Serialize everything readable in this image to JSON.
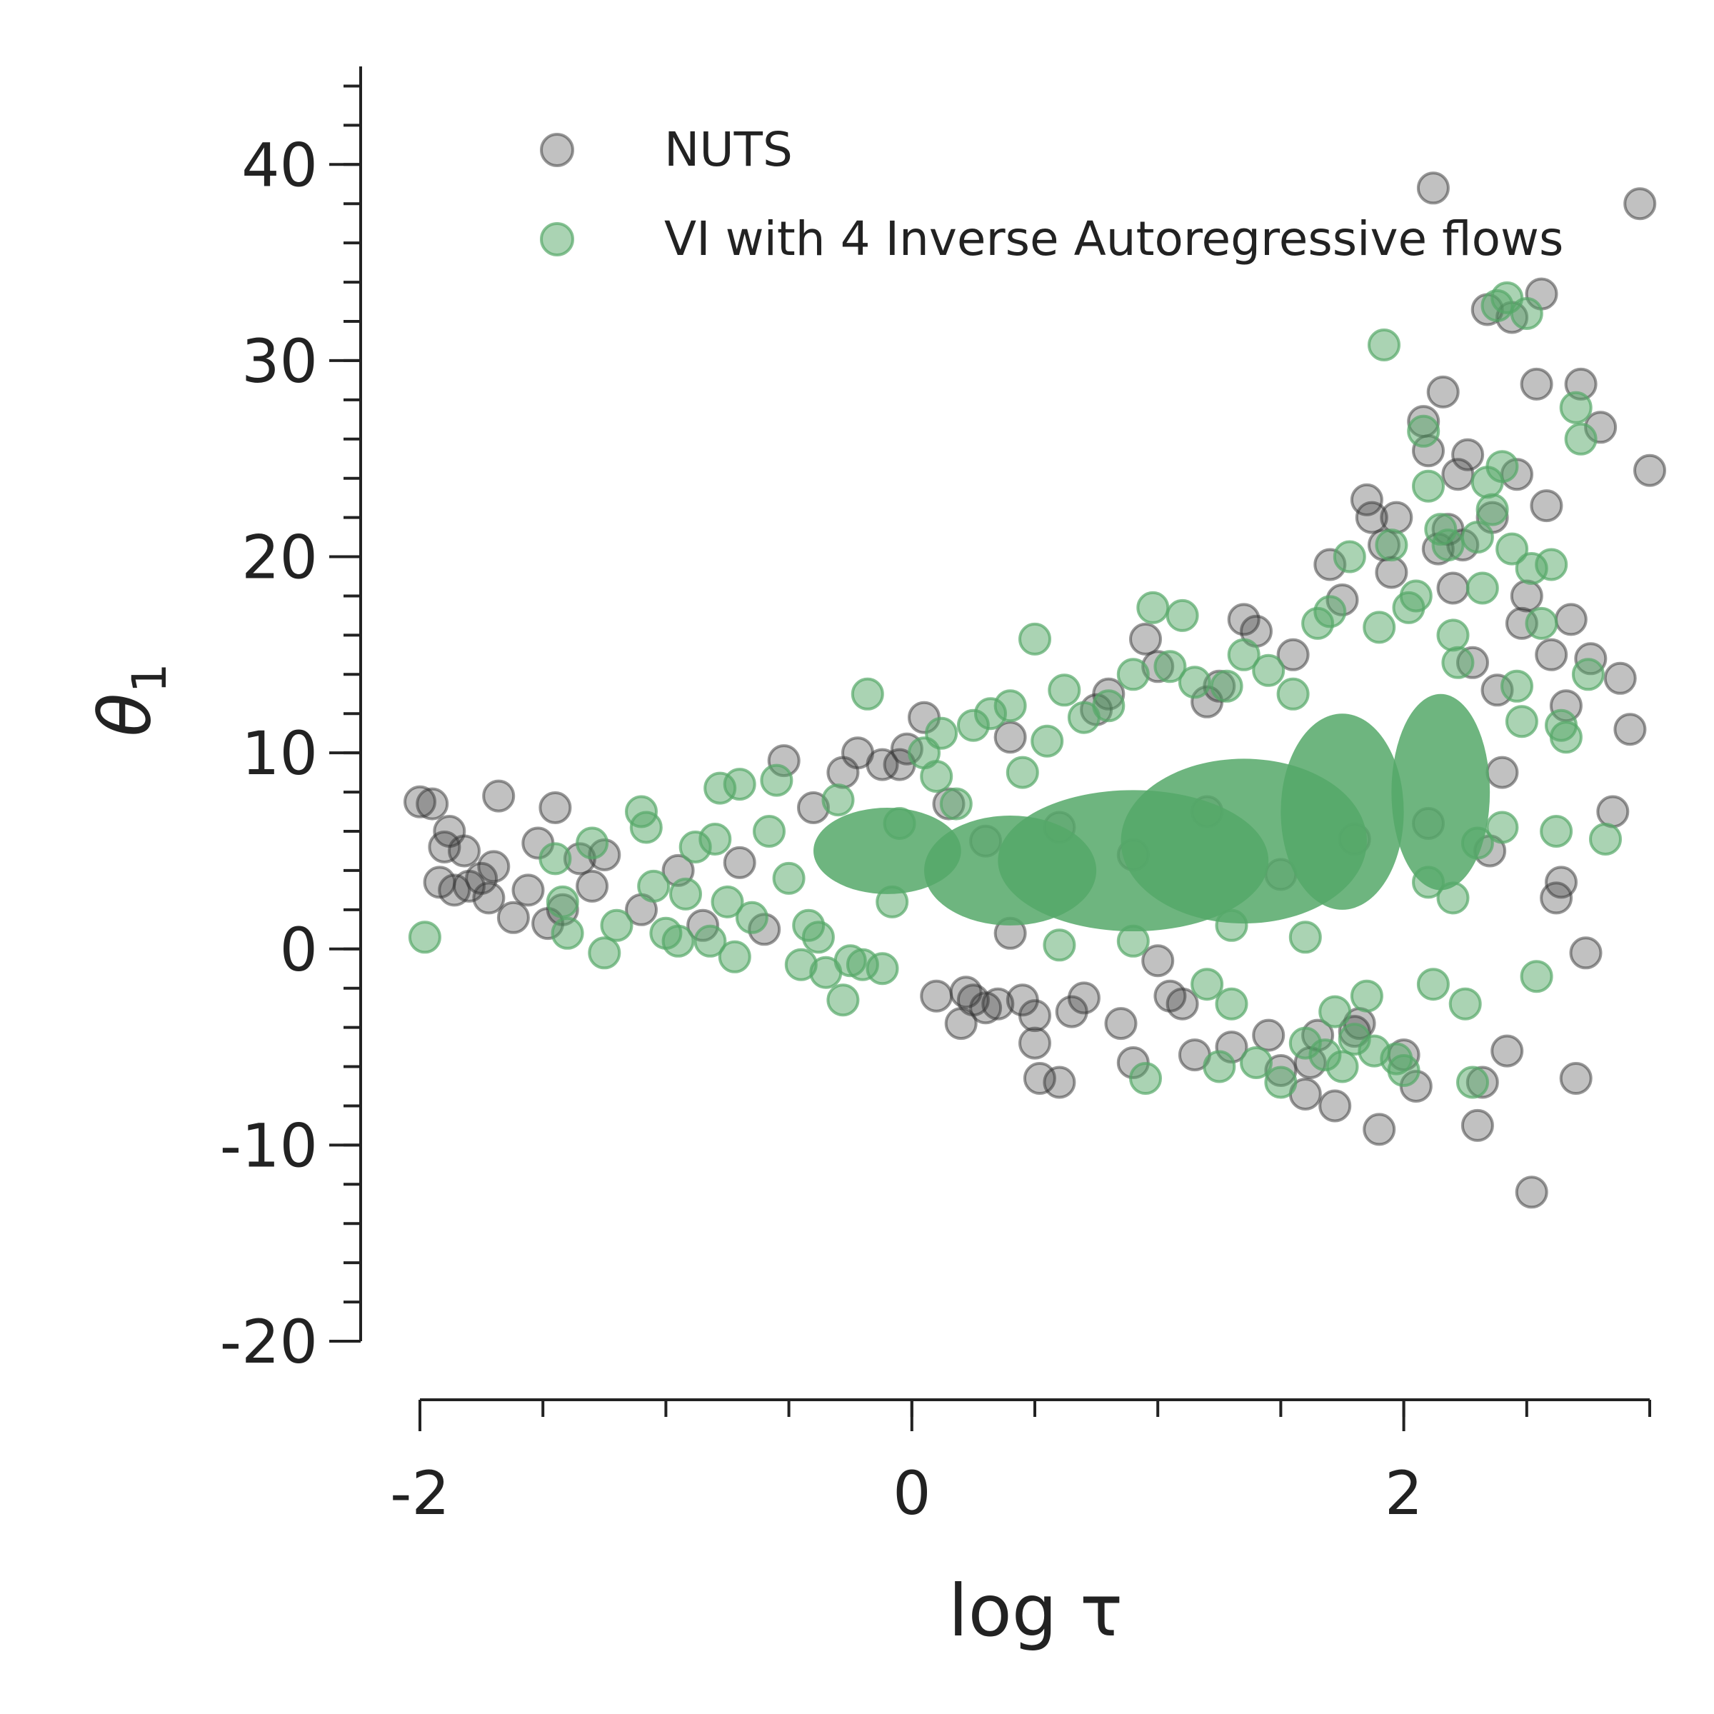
{
  "chart_data": {
    "type": "scatter",
    "title": "",
    "xlabel": "log τ",
    "ylabel_base": "θ",
    "ylabel_sub": "1",
    "xlim": [
      -2,
      3
    ],
    "ylim": [
      -20,
      45
    ],
    "x_ticks": [
      -2,
      0,
      2
    ],
    "x_tick_labels": [
      "-2",
      "0",
      "2"
    ],
    "x_minor_step": 0.5,
    "y_ticks": [
      -20,
      -10,
      0,
      10,
      20,
      30,
      40
    ],
    "y_tick_labels": [
      "-20",
      "-10",
      "0",
      "10",
      "20",
      "30",
      "40"
    ],
    "y_minor_step": 2,
    "grid": false,
    "legend_position": "top-right",
    "series": [
      {
        "name": "NUTS",
        "color": "#333333",
        "opacity": 0.3,
        "points": [
          [
            -2.0,
            7.5
          ],
          [
            -1.95,
            7.4
          ],
          [
            -1.88,
            6.0
          ],
          [
            -1.9,
            5.2
          ],
          [
            -1.82,
            5.0
          ],
          [
            -1.92,
            3.4
          ],
          [
            -1.86,
            3.0
          ],
          [
            -1.8,
            3.2
          ],
          [
            -1.75,
            3.6
          ],
          [
            -1.72,
            2.6
          ],
          [
            -1.7,
            4.2
          ],
          [
            -1.68,
            7.8
          ],
          [
            -1.62,
            1.6
          ],
          [
            -1.56,
            3.0
          ],
          [
            -1.52,
            5.4
          ],
          [
            -1.48,
            1.3
          ],
          [
            -1.45,
            7.2
          ],
          [
            -1.42,
            2.0
          ],
          [
            -1.35,
            4.6
          ],
          [
            -1.3,
            3.2
          ],
          [
            -1.25,
            4.8
          ],
          [
            -1.1,
            2.0
          ],
          [
            -0.95,
            4.0
          ],
          [
            -0.85,
            1.2
          ],
          [
            -0.7,
            4.4
          ],
          [
            -0.6,
            1.0
          ],
          [
            -0.52,
            9.6
          ],
          [
            -0.4,
            7.2
          ],
          [
            -0.28,
            9.0
          ],
          [
            -0.22,
            10.0
          ],
          [
            -0.12,
            9.4
          ],
          [
            -0.05,
            9.4
          ],
          [
            -0.02,
            10.2
          ],
          [
            0.05,
            11.8
          ],
          [
            0.1,
            -2.4
          ],
          [
            0.15,
            7.4
          ],
          [
            0.2,
            -3.8
          ],
          [
            0.22,
            -2.2
          ],
          [
            0.25,
            -2.6
          ],
          [
            0.3,
            -3.0
          ],
          [
            0.35,
            -2.8
          ],
          [
            0.4,
            10.8
          ],
          [
            0.45,
            -2.6
          ],
          [
            0.5,
            -3.4
          ],
          [
            0.5,
            -4.8
          ],
          [
            0.52,
            -6.6
          ],
          [
            0.6,
            -6.8
          ],
          [
            0.65,
            -3.2
          ],
          [
            0.7,
            -2.5
          ],
          [
            0.75,
            12.2
          ],
          [
            0.8,
            13.0
          ],
          [
            0.85,
            -3.8
          ],
          [
            0.9,
            -5.8
          ],
          [
            0.95,
            15.8
          ],
          [
            1.0,
            14.4
          ],
          [
            1.05,
            -2.4
          ],
          [
            1.1,
            -2.8
          ],
          [
            1.15,
            -5.4
          ],
          [
            1.2,
            12.6
          ],
          [
            1.25,
            13.4
          ],
          [
            1.3,
            -5.0
          ],
          [
            1.35,
            16.8
          ],
          [
            1.4,
            16.2
          ],
          [
            1.45,
            -4.4
          ],
          [
            1.5,
            -6.2
          ],
          [
            1.55,
            15.0
          ],
          [
            1.6,
            -7.4
          ],
          [
            1.62,
            -5.8
          ],
          [
            1.65,
            -4.4
          ],
          [
            1.7,
            19.6
          ],
          [
            1.72,
            -8.0
          ],
          [
            1.75,
            17.8
          ],
          [
            1.8,
            -4.2
          ],
          [
            1.82,
            -3.8
          ],
          [
            1.85,
            22.9
          ],
          [
            1.87,
            22.0
          ],
          [
            1.9,
            -9.2
          ],
          [
            1.92,
            20.6
          ],
          [
            1.95,
            19.2
          ],
          [
            1.97,
            22.0
          ],
          [
            2.0,
            -5.4
          ],
          [
            2.05,
            -7.0
          ],
          [
            2.08,
            26.9
          ],
          [
            2.1,
            25.4
          ],
          [
            2.12,
            38.8
          ],
          [
            2.14,
            20.4
          ],
          [
            2.16,
            28.4
          ],
          [
            2.18,
            21.4
          ],
          [
            2.2,
            18.4
          ],
          [
            2.22,
            24.2
          ],
          [
            2.24,
            20.6
          ],
          [
            2.26,
            25.2
          ],
          [
            2.28,
            14.6
          ],
          [
            2.3,
            -9.0
          ],
          [
            2.32,
            -6.8
          ],
          [
            2.34,
            32.6
          ],
          [
            2.36,
            22.0
          ],
          [
            2.38,
            13.2
          ],
          [
            2.4,
            9.0
          ],
          [
            2.42,
            -5.2
          ],
          [
            2.44,
            32.2
          ],
          [
            2.46,
            24.2
          ],
          [
            2.48,
            16.6
          ],
          [
            2.5,
            18.0
          ],
          [
            2.52,
            -12.4
          ],
          [
            2.54,
            28.8
          ],
          [
            2.56,
            33.4
          ],
          [
            2.58,
            22.6
          ],
          [
            2.6,
            15.0
          ],
          [
            2.62,
            2.6
          ],
          [
            2.64,
            3.4
          ],
          [
            2.66,
            12.4
          ],
          [
            2.68,
            16.8
          ],
          [
            2.7,
            -6.6
          ],
          [
            2.72,
            28.8
          ],
          [
            2.74,
            -0.2
          ],
          [
            2.76,
            14.8
          ],
          [
            2.8,
            26.6
          ],
          [
            2.85,
            7.0
          ],
          [
            2.88,
            13.8
          ],
          [
            2.92,
            11.2
          ],
          [
            2.96,
            38.0
          ],
          [
            3.0,
            24.4
          ],
          [
            0.3,
            5.5
          ],
          [
            0.6,
            6.2
          ],
          [
            0.9,
            4.8
          ],
          [
            1.2,
            7.0
          ],
          [
            1.5,
            3.8
          ],
          [
            1.8,
            5.6
          ],
          [
            2.1,
            6.4
          ],
          [
            2.35,
            5.0
          ],
          [
            0.4,
            0.8
          ],
          [
            1.0,
            -0.6
          ]
        ]
      },
      {
        "name": "VI with 4 Inverse Autoregressive flows",
        "color": "#55a868",
        "opacity": 0.5,
        "points": [
          [
            -1.98,
            0.6
          ],
          [
            -1.45,
            4.6
          ],
          [
            -1.42,
            2.4
          ],
          [
            -1.4,
            0.8
          ],
          [
            -1.3,
            5.4
          ],
          [
            -1.25,
            -0.2
          ],
          [
            -1.2,
            1.2
          ],
          [
            -1.1,
            7.0
          ],
          [
            -1.08,
            6.2
          ],
          [
            -1.05,
            3.2
          ],
          [
            -1.0,
            0.8
          ],
          [
            -0.95,
            0.4
          ],
          [
            -0.92,
            2.8
          ],
          [
            -0.88,
            5.2
          ],
          [
            -0.82,
            0.4
          ],
          [
            -0.8,
            5.6
          ],
          [
            -0.78,
            8.2
          ],
          [
            -0.75,
            2.4
          ],
          [
            -0.72,
            -0.4
          ],
          [
            -0.7,
            8.4
          ],
          [
            -0.65,
            1.6
          ],
          [
            -0.58,
            6.0
          ],
          [
            -0.55,
            8.6
          ],
          [
            -0.5,
            3.6
          ],
          [
            -0.45,
            -0.8
          ],
          [
            -0.42,
            1.2
          ],
          [
            -0.38,
            0.6
          ],
          [
            -0.35,
            -1.2
          ],
          [
            -0.3,
            7.6
          ],
          [
            -0.28,
            -2.6
          ],
          [
            -0.25,
            -0.6
          ],
          [
            -0.2,
            -0.8
          ],
          [
            -0.18,
            13.0
          ],
          [
            -0.12,
            -1.0
          ],
          [
            -0.08,
            2.4
          ],
          [
            -0.05,
            6.4
          ],
          [
            0.05,
            10.0
          ],
          [
            0.1,
            8.8
          ],
          [
            0.12,
            11.0
          ],
          [
            0.18,
            7.4
          ],
          [
            0.25,
            11.4
          ],
          [
            0.32,
            12.0
          ],
          [
            0.4,
            12.4
          ],
          [
            0.45,
            9.0
          ],
          [
            0.5,
            15.8
          ],
          [
            0.55,
            10.6
          ],
          [
            0.62,
            13.2
          ],
          [
            0.7,
            11.8
          ],
          [
            0.8,
            12.4
          ],
          [
            0.9,
            14.0
          ],
          [
            0.95,
            -6.6
          ],
          [
            0.98,
            17.4
          ],
          [
            1.05,
            14.4
          ],
          [
            1.1,
            17.0
          ],
          [
            1.15,
            13.6
          ],
          [
            1.2,
            -1.8
          ],
          [
            1.25,
            -6.0
          ],
          [
            1.28,
            13.4
          ],
          [
            1.3,
            -2.8
          ],
          [
            1.35,
            15.0
          ],
          [
            1.4,
            -5.8
          ],
          [
            1.45,
            14.2
          ],
          [
            1.5,
            -6.8
          ],
          [
            1.55,
            13.0
          ],
          [
            1.6,
            -4.8
          ],
          [
            1.65,
            16.6
          ],
          [
            1.68,
            -5.4
          ],
          [
            1.7,
            17.2
          ],
          [
            1.72,
            -3.2
          ],
          [
            1.75,
            -6.0
          ],
          [
            1.78,
            20.0
          ],
          [
            1.8,
            -4.6
          ],
          [
            1.85,
            -2.4
          ],
          [
            1.88,
            -5.2
          ],
          [
            1.9,
            16.4
          ],
          [
            1.92,
            30.8
          ],
          [
            1.95,
            20.6
          ],
          [
            1.97,
            -5.6
          ],
          [
            2.0,
            -6.2
          ],
          [
            2.02,
            17.4
          ],
          [
            2.05,
            18.0
          ],
          [
            2.08,
            26.4
          ],
          [
            2.1,
            23.6
          ],
          [
            2.12,
            -1.8
          ],
          [
            2.15,
            21.4
          ],
          [
            2.18,
            20.6
          ],
          [
            2.2,
            16.0
          ],
          [
            2.22,
            14.6
          ],
          [
            2.25,
            -2.8
          ],
          [
            2.28,
            -6.8
          ],
          [
            2.3,
            21.0
          ],
          [
            2.32,
            18.4
          ],
          [
            2.34,
            23.8
          ],
          [
            2.36,
            22.4
          ],
          [
            2.38,
            32.8
          ],
          [
            2.4,
            24.6
          ],
          [
            2.42,
            33.2
          ],
          [
            2.44,
            20.4
          ],
          [
            2.46,
            13.4
          ],
          [
            2.48,
            11.6
          ],
          [
            2.5,
            32.4
          ],
          [
            2.52,
            19.4
          ],
          [
            2.54,
            -1.4
          ],
          [
            2.56,
            16.6
          ],
          [
            2.6,
            19.6
          ],
          [
            2.62,
            6.0
          ],
          [
            2.64,
            11.4
          ],
          [
            2.66,
            10.8
          ],
          [
            2.7,
            27.6
          ],
          [
            2.72,
            26.0
          ],
          [
            2.75,
            14.0
          ],
          [
            2.82,
            5.6
          ],
          [
            2.4,
            6.2
          ],
          [
            2.3,
            5.4
          ],
          [
            2.2,
            2.6
          ],
          [
            2.1,
            3.4
          ],
          [
            1.6,
            0.6
          ],
          [
            1.3,
            1.2
          ],
          [
            0.9,
            0.4
          ],
          [
            0.6,
            0.2
          ]
        ]
      }
    ]
  }
}
